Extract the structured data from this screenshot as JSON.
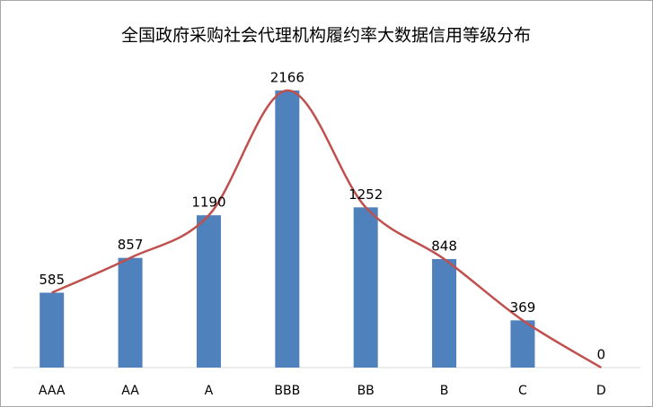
{
  "chart_data": {
    "type": "bar",
    "title": "全国政府采购社会代理机构履约率大数据信用等级分布",
    "categories": [
      "AAA",
      "AA",
      "A",
      "BBB",
      "BB",
      "B",
      "C",
      "D"
    ],
    "values": [
      585,
      857,
      1190,
      2166,
      1252,
      848,
      369,
      0
    ],
    "color": "#4f81bd",
    "line_color": "#c0504d",
    "smooth_line": true,
    "ylim": [
      0,
      2200
    ]
  }
}
